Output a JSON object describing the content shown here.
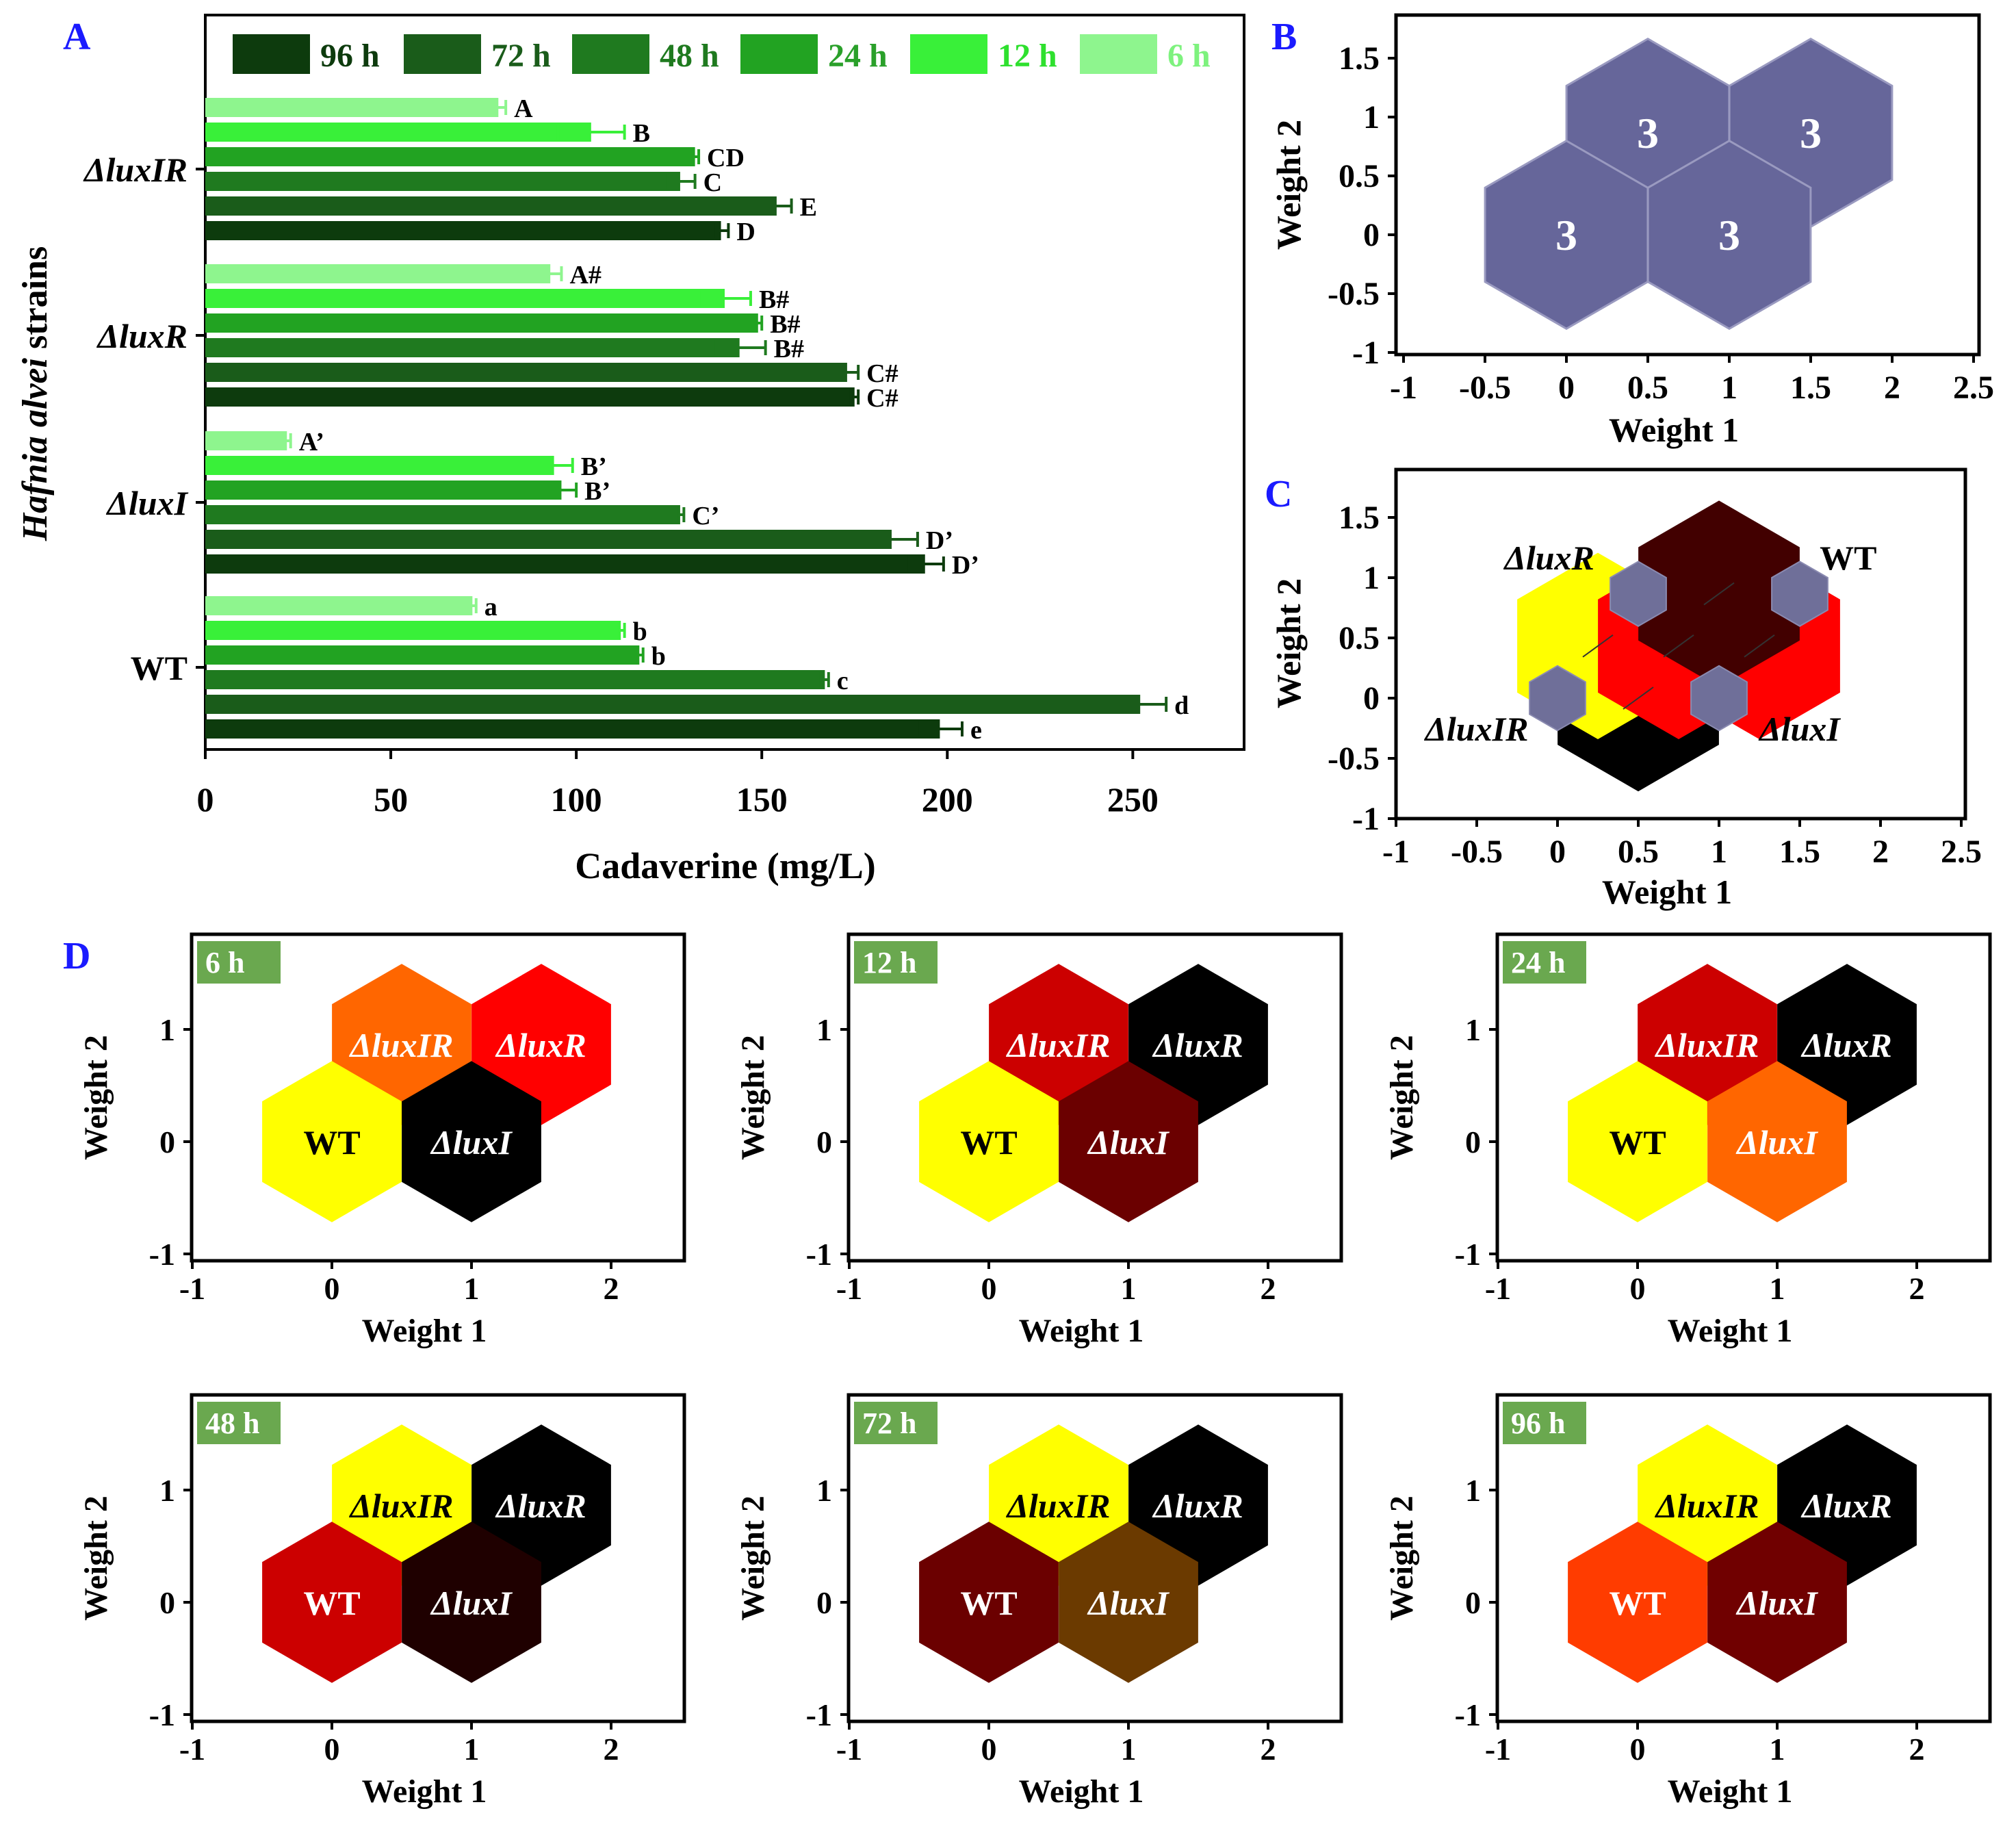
{
  "panel_letters": {
    "a": "A",
    "b": "B",
    "c": "C",
    "d": "D"
  },
  "colors": {
    "panel_letter": "#1a1aff",
    "series": {
      "96 h": "#0d3b0d",
      "72 h": "#1a5c1a",
      "48 h": "#1f7a1f",
      "24 h": "#22a322",
      "12 h": "#39f039",
      "6 h": "#8ef58e"
    },
    "legend_text": {
      "96 h": "#0d3b0d",
      "72 h": "#1a5c1a",
      "48 h": "#1f7a1f",
      "24 h": "#2aa02a",
      "12 h": "#2ee02e",
      "6 h": "#7ef27e"
    },
    "time_badge": "#6aa84f",
    "hex_b": "#66669a",
    "hex_small": "#6f6f99",
    "heat": {
      "yellow": "#ffff00",
      "orange": "#ff6600",
      "red": "#ff0000",
      "dark_red": "#cc0000",
      "maroon": "#6b0000",
      "black": "#000000",
      "near_black": "#1f0000",
      "brown": "#6b3a00",
      "orange_red": "#ff3c00",
      "maroon2": "#700000",
      "dark_maroon": "#420000"
    }
  },
  "chart_data": [
    {
      "id": "A",
      "type": "bar",
      "orientation": "horizontal",
      "title": "",
      "xlabel": "Cadaverine (mg/L)",
      "ylabel_italic": "Hafnia alvei",
      "ylabel_rest": " strains",
      "xlim": [
        0,
        280
      ],
      "xticks": [
        0,
        50,
        100,
        150,
        200,
        250
      ],
      "categories": [
        "ΔluxIR",
        "ΔluxR",
        "ΔluxI",
        "WT"
      ],
      "series": [
        {
          "name": "6 h",
          "values": [
            79,
            93,
            22,
            72
          ],
          "errors": [
            2,
            3,
            1,
            1
          ],
          "labels": [
            "A",
            "A#",
            "A’",
            "a"
          ]
        },
        {
          "name": "12 h",
          "values": [
            104,
            140,
            94,
            112
          ],
          "errors": [
            9,
            7,
            5,
            1
          ],
          "labels": [
            "B",
            "B#",
            "B’",
            "b"
          ]
        },
        {
          "name": "24 h",
          "values": [
            132,
            149,
            96,
            117
          ],
          "errors": [
            1,
            1,
            4,
            1
          ],
          "labels": [
            "CD",
            "B#",
            "B’",
            "b"
          ]
        },
        {
          "name": "48 h",
          "values": [
            128,
            144,
            128,
            167
          ],
          "errors": [
            4,
            7,
            1,
            1
          ],
          "labels": [
            "C",
            "B#",
            "C’",
            "c"
          ]
        },
        {
          "name": "72 h",
          "values": [
            154,
            173,
            185,
            252
          ],
          "errors": [
            4,
            3,
            7,
            7
          ],
          "labels": [
            "E",
            "C#",
            "D’",
            "d"
          ]
        },
        {
          "name": "96 h",
          "values": [
            139,
            175,
            194,
            198
          ],
          "errors": [
            2,
            1,
            5,
            6
          ],
          "labels": [
            "D",
            "C#",
            "D’",
            "e"
          ]
        }
      ],
      "legend_order": [
        "96 h",
        "72 h",
        "48 h",
        "24 h",
        "12 h",
        "6 h"
      ],
      "legend": "top"
    },
    {
      "id": "B",
      "type": "som-hexagons",
      "xlabel": "Weight 1",
      "ylabel": "Weight 2",
      "xlim": [
        -1,
        2.5
      ],
      "ylim": [
        -1,
        1.75
      ],
      "xticks": [
        "-1",
        "-0.5",
        "0",
        "0.5",
        "1",
        "1.5",
        "2",
        "2.5"
      ],
      "yticks": [
        "-1",
        "-0.5",
        "0",
        "0.5",
        "1",
        "1.5"
      ],
      "hex_radius": 0.577,
      "cells": [
        {
          "x": 0.5,
          "y": 0.866,
          "text": "3"
        },
        {
          "x": 1.5,
          "y": 0.866,
          "text": "3"
        },
        {
          "x": 0,
          "y": 0,
          "text": "3"
        },
        {
          "x": 1,
          "y": 0,
          "text": "3"
        }
      ]
    },
    {
      "id": "C",
      "type": "som-neighbor-distance",
      "xlabel": "Weight 1",
      "ylabel": "Weight 2",
      "xlim": [
        -1,
        2.5
      ],
      "ylim": [
        -1,
        1.75
      ],
      "xticks": [
        "-1",
        "-0.5",
        "0",
        "0.5",
        "1",
        "1.5",
        "2",
        "2.5"
      ],
      "yticks": [
        "-1",
        "-0.5",
        "0",
        "0.5",
        "1",
        "1.5"
      ],
      "neurons": [
        {
          "x": 0,
          "y": 0
        },
        {
          "x": 1,
          "y": 0
        },
        {
          "x": 0.5,
          "y": 0.866
        },
        {
          "x": 1.5,
          "y": 0.866
        }
      ],
      "edges": [
        {
          "x": 0.5,
          "y": 0,
          "color": "black"
        },
        {
          "x": 0.25,
          "y": 0.433,
          "color": "yellow"
        },
        {
          "x": 0.75,
          "y": 0.433,
          "color": "red"
        },
        {
          "x": 1.25,
          "y": 0.433,
          "color": "red"
        },
        {
          "x": 1,
          "y": 0.866,
          "color": "dark_maroon"
        }
      ],
      "labels": [
        {
          "text": "ΔluxR",
          "italic": true,
          "x": -0.05,
          "y": 1.17
        },
        {
          "text": "WT",
          "italic": false,
          "x": 1.8,
          "y": 1.17
        },
        {
          "text": "ΔluxIR",
          "italic": true,
          "x": -0.5,
          "y": -0.25
        },
        {
          "text": "ΔluxI",
          "italic": true,
          "x": 1.5,
          "y": -0.25
        }
      ]
    },
    {
      "id": "D",
      "type": "som-component-planes",
      "xlabel": "Weight 1",
      "ylabel": "Weight 2",
      "xlim": [
        -1,
        2.5
      ],
      "ylim": [
        -1,
        1.75
      ],
      "xticks": [
        "-1",
        "0",
        "1",
        "2"
      ],
      "yticks": [
        "-1",
        "0",
        "1"
      ],
      "hex_radius": 0.577,
      "positions": {
        "ΔluxIR": {
          "x": 0.5,
          "y": 0.866
        },
        "ΔluxR": {
          "x": 1.5,
          "y": 0.866
        },
        "WT": {
          "x": 0,
          "y": 0
        },
        "ΔluxI": {
          "x": 1,
          "y": 0
        }
      },
      "panels": [
        {
          "time": "6 h",
          "cells": {
            "ΔluxIR": "orange",
            "ΔluxR": "red",
            "WT": "yellow",
            "ΔluxI": "black"
          }
        },
        {
          "time": "12 h",
          "cells": {
            "ΔluxIR": "dark_red",
            "ΔluxR": "black",
            "WT": "yellow",
            "ΔluxI": "maroon"
          }
        },
        {
          "time": "24 h",
          "cells": {
            "ΔluxIR": "dark_red",
            "ΔluxR": "black",
            "WT": "yellow",
            "ΔluxI": "orange"
          }
        },
        {
          "time": "48 h",
          "cells": {
            "ΔluxIR": "yellow",
            "ΔluxR": "black",
            "WT": "dark_red",
            "ΔluxI": "near_black"
          }
        },
        {
          "time": "72 h",
          "cells": {
            "ΔluxIR": "yellow",
            "ΔluxR": "black",
            "WT": "maroon",
            "ΔluxI": "brown"
          }
        },
        {
          "time": "96 h",
          "cells": {
            "ΔluxIR": "yellow",
            "ΔluxR": "black",
            "WT": "orange_red",
            "ΔluxI": "maroon2"
          }
        }
      ]
    }
  ]
}
